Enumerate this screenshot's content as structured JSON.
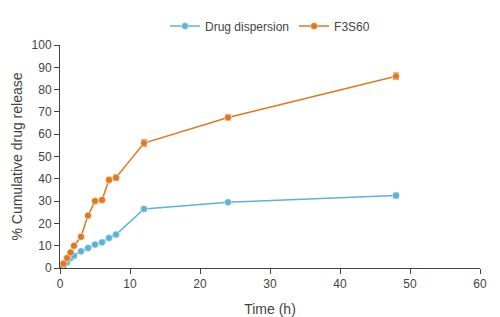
{
  "chart_data": {
    "type": "line",
    "xlabel": "Time (h)",
    "ylabel": "% Cumulative drug release",
    "x": [
      0,
      0.5,
      1,
      1.5,
      2,
      3,
      4,
      5,
      6,
      7,
      8,
      12,
      24,
      48
    ],
    "series": [
      {
        "name": "Drug dispersion",
        "color": "#5ab4d6",
        "values": [
          0,
          1.0,
          2.5,
          4.5,
          5.5,
          7.5,
          9.0,
          10.5,
          11.5,
          13.5,
          15.0,
          26.5,
          29.5,
          32.5
        ],
        "errors": [
          0,
          0.3,
          0.3,
          0.3,
          0.3,
          0.4,
          0.4,
          0.4,
          0.4,
          0.5,
          0.5,
          1.0,
          0.8,
          1.2
        ]
      },
      {
        "name": "F3S60",
        "color": "#e07820",
        "values": [
          0,
          2.0,
          4.5,
          7.0,
          10.0,
          14.0,
          23.5,
          30.0,
          30.5,
          39.5,
          40.5,
          56.0,
          67.5,
          86.0
        ],
        "errors": [
          0,
          0.3,
          0.4,
          0.5,
          0.5,
          0.6,
          0.8,
          0.9,
          1.0,
          1.2,
          1.3,
          1.5,
          1.2,
          1.5
        ]
      }
    ],
    "marker": "circle",
    "xlim": [
      0,
      60
    ],
    "ylim": [
      0,
      100
    ],
    "xticks": [
      0,
      10,
      20,
      30,
      40,
      50,
      60
    ],
    "yticks": [
      0,
      10,
      20,
      30,
      40,
      50,
      60,
      70,
      80,
      90,
      100
    ],
    "grid": false,
    "legend": "top"
  }
}
